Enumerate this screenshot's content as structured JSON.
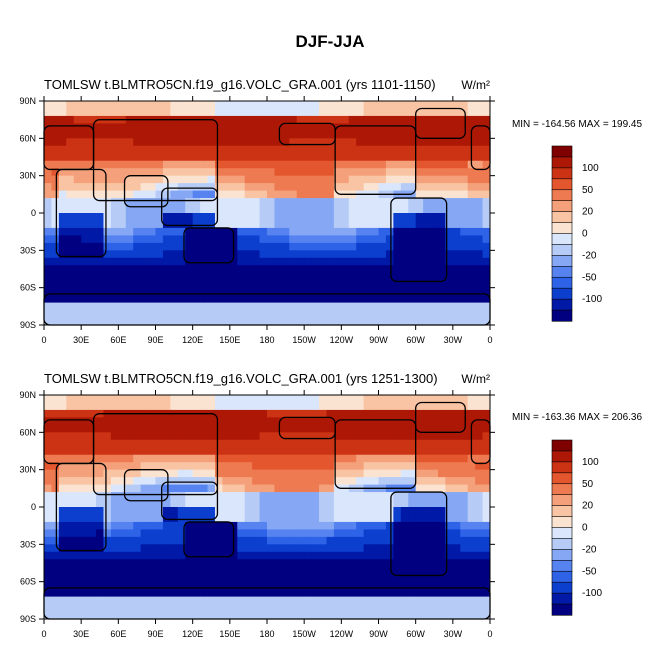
{
  "page": {
    "title": "DJF-JJA"
  },
  "colors": {
    "levels": [
      -100,
      -50,
      -20,
      0,
      20,
      50,
      100
    ],
    "palette": [
      "#000080",
      "#0019a6",
      "#0d3fcf",
      "#2e63e8",
      "#5683f0",
      "#86a8f4",
      "#b6ccf7",
      "#dae6fb",
      "#fbe3d2",
      "#f9c4a3",
      "#f4a17b",
      "#ee7a52",
      "#e4572e",
      "#cc3214",
      "#ad1806",
      "#7f0000"
    ],
    "land_outline": "#000000"
  },
  "chart_data": [
    {
      "type": "heatmap",
      "title_left": "TOMLSW t.BLMTRO5CN.f19_g16.VOLC_GRA.001 (yrs 1101-1150)",
      "units": "W/m²",
      "stats": "MIN = -164.56 MAX = 199.45",
      "min": -164.56,
      "max": 199.45,
      "x_ticks": [
        "0",
        "30E",
        "60E",
        "90E",
        "120E",
        "150E",
        "180",
        "150W",
        "120W",
        "90W",
        "60W",
        "30W",
        "0"
      ],
      "y_ticks": [
        "90N",
        "60N",
        "30N",
        "0",
        "30S",
        "60S",
        "90S"
      ],
      "colorbar_labels": [
        "100",
        "50",
        "20",
        "0",
        "-20",
        "-50",
        "-100"
      ],
      "xlim": [
        0,
        360
      ],
      "ylim": [
        -90,
        90
      ]
    },
    {
      "type": "heatmap",
      "title_left": "TOMLSW t.BLMTRO5CN.f19_g16.VOLC_GRA.001 (yrs 1251-1300)",
      "units": "W/m²",
      "stats": "MIN = -163.36 MAX = 206.36",
      "min": -163.36,
      "max": 206.36,
      "x_ticks": [
        "0",
        "30E",
        "60E",
        "90E",
        "120E",
        "150E",
        "180",
        "150W",
        "120W",
        "90W",
        "60W",
        "30W",
        "0"
      ],
      "y_ticks": [
        "90N",
        "60N",
        "30N",
        "0",
        "30S",
        "60S",
        "90S"
      ],
      "colorbar_labels": [
        "100",
        "50",
        "20",
        "0",
        "-20",
        "-50",
        "-100"
      ],
      "xlim": [
        0,
        360
      ],
      "ylim": [
        -90,
        90
      ]
    }
  ]
}
